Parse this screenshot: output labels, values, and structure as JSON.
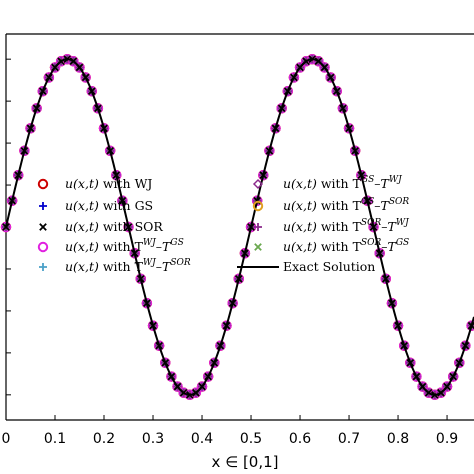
{
  "chart_data": {
    "type": "line",
    "xlabel": "x ∈ [0,1]",
    "ylabel": "",
    "title": "",
    "xlim": [
      0,
      0.955
    ],
    "ylim": [
      -1.15,
      1.15
    ],
    "xticks": [
      "0",
      "0.1",
      "0.2",
      "0.3",
      "0.4",
      "0.5",
      "0.6",
      "0.7",
      "0.8",
      "0.9"
    ],
    "xtick_values": [
      0,
      0.1,
      0.2,
      0.3,
      0.4,
      0.5,
      0.6,
      0.7,
      0.8,
      0.9
    ],
    "grid": false,
    "legend_placement": "center",
    "exact_solution": {
      "name": "Exact Solution",
      "function": "sin(4*pi*x)",
      "color": "#000000"
    },
    "sample_x": [
      0,
      0.0125,
      0.025,
      0.0375,
      0.05,
      0.0625,
      0.075,
      0.0875,
      0.1,
      0.1125,
      0.125,
      0.1375,
      0.15,
      0.1625,
      0.175,
      0.1875,
      0.2,
      0.2125,
      0.225,
      0.2375,
      0.25,
      0.2625,
      0.275,
      0.2875,
      0.3,
      0.3125,
      0.325,
      0.3375,
      0.35,
      0.3625,
      0.375,
      0.3875,
      0.4,
      0.4125,
      0.425,
      0.4375,
      0.45,
      0.4625,
      0.475,
      0.4875,
      0.5,
      0.5125,
      0.525,
      0.5375,
      0.55,
      0.5625,
      0.575,
      0.5875,
      0.6,
      0.6125,
      0.625,
      0.6375,
      0.65,
      0.6625,
      0.675,
      0.6875,
      0.7,
      0.7125,
      0.725,
      0.7375,
      0.75,
      0.7625,
      0.775,
      0.7875,
      0.8,
      0.8125,
      0.825,
      0.8375,
      0.85,
      0.8625,
      0.875,
      0.8875,
      0.9,
      0.9125,
      0.925,
      0.9375,
      0.95
    ],
    "series": [
      {
        "name": "u(x,t) with WJ",
        "marker": "circle",
        "color": "#cc0000"
      },
      {
        "name": "u(x,t) with GS",
        "marker": "plus",
        "color": "#0000cc"
      },
      {
        "name": "u(x,t) with SOR",
        "marker": "x",
        "color": "#000000"
      },
      {
        "name": "u(x,t) with T^WJ–T^GS",
        "marker": "circle",
        "color": "#e020e0"
      },
      {
        "name": "u(x,t) with T^WJ–T^SOR",
        "marker": "plus",
        "color": "#4aa0c8"
      },
      {
        "name": "u(x,t) with T^GS–T^WJ",
        "marker": "diamond",
        "color": "#8b2a8b"
      },
      {
        "name": "u(x,t) with T^GS–T^SOR",
        "marker": "circle",
        "color": "#e0a020"
      },
      {
        "name": "u(x,t) with T^SOR–T^WJ",
        "marker": "plus",
        "color": "#8b2a8b"
      },
      {
        "name": "u(x,t) with T^SOR–T^GS",
        "marker": "x",
        "color": "#6aa84f"
      }
    ],
    "legend": {
      "left": [
        {
          "base": "u(x,t)",
          "mid": "with WJ",
          "sup1": "",
          "dash": "",
          "sup2": ""
        },
        {
          "base": "u(x,t)",
          "mid": "with GS",
          "sup1": "",
          "dash": "",
          "sup2": ""
        },
        {
          "base": "u(x,t)",
          "mid": "with SOR",
          "sup1": "",
          "dash": "",
          "sup2": ""
        },
        {
          "base": "u(x,t)",
          "mid": "with T",
          "sup1": "WJ",
          "dash": "–T",
          "sup2": "GS"
        },
        {
          "base": "u(x,t)",
          "mid": "with T",
          "sup1": "WJ",
          "dash": "–T",
          "sup2": "SOR"
        }
      ],
      "right": [
        {
          "base": "u(x,t)",
          "mid": "with T",
          "sup1": "GS",
          "dash": "–T",
          "sup2": "WJ"
        },
        {
          "base": "u(x,t)",
          "mid": "with T",
          "sup1": "GS",
          "dash": "–T",
          "sup2": "SOR"
        },
        {
          "base": "u(x,t)",
          "mid": "with T",
          "sup1": "SOR",
          "dash": "–T",
          "sup2": "WJ"
        },
        {
          "base": "u(x,t)",
          "mid": "with T",
          "sup1": "SOR",
          "dash": "–T",
          "sup2": "GS"
        },
        {
          "base": "",
          "mid": "Exact Solution",
          "sup1": "",
          "dash": "",
          "sup2": ""
        }
      ]
    }
  }
}
